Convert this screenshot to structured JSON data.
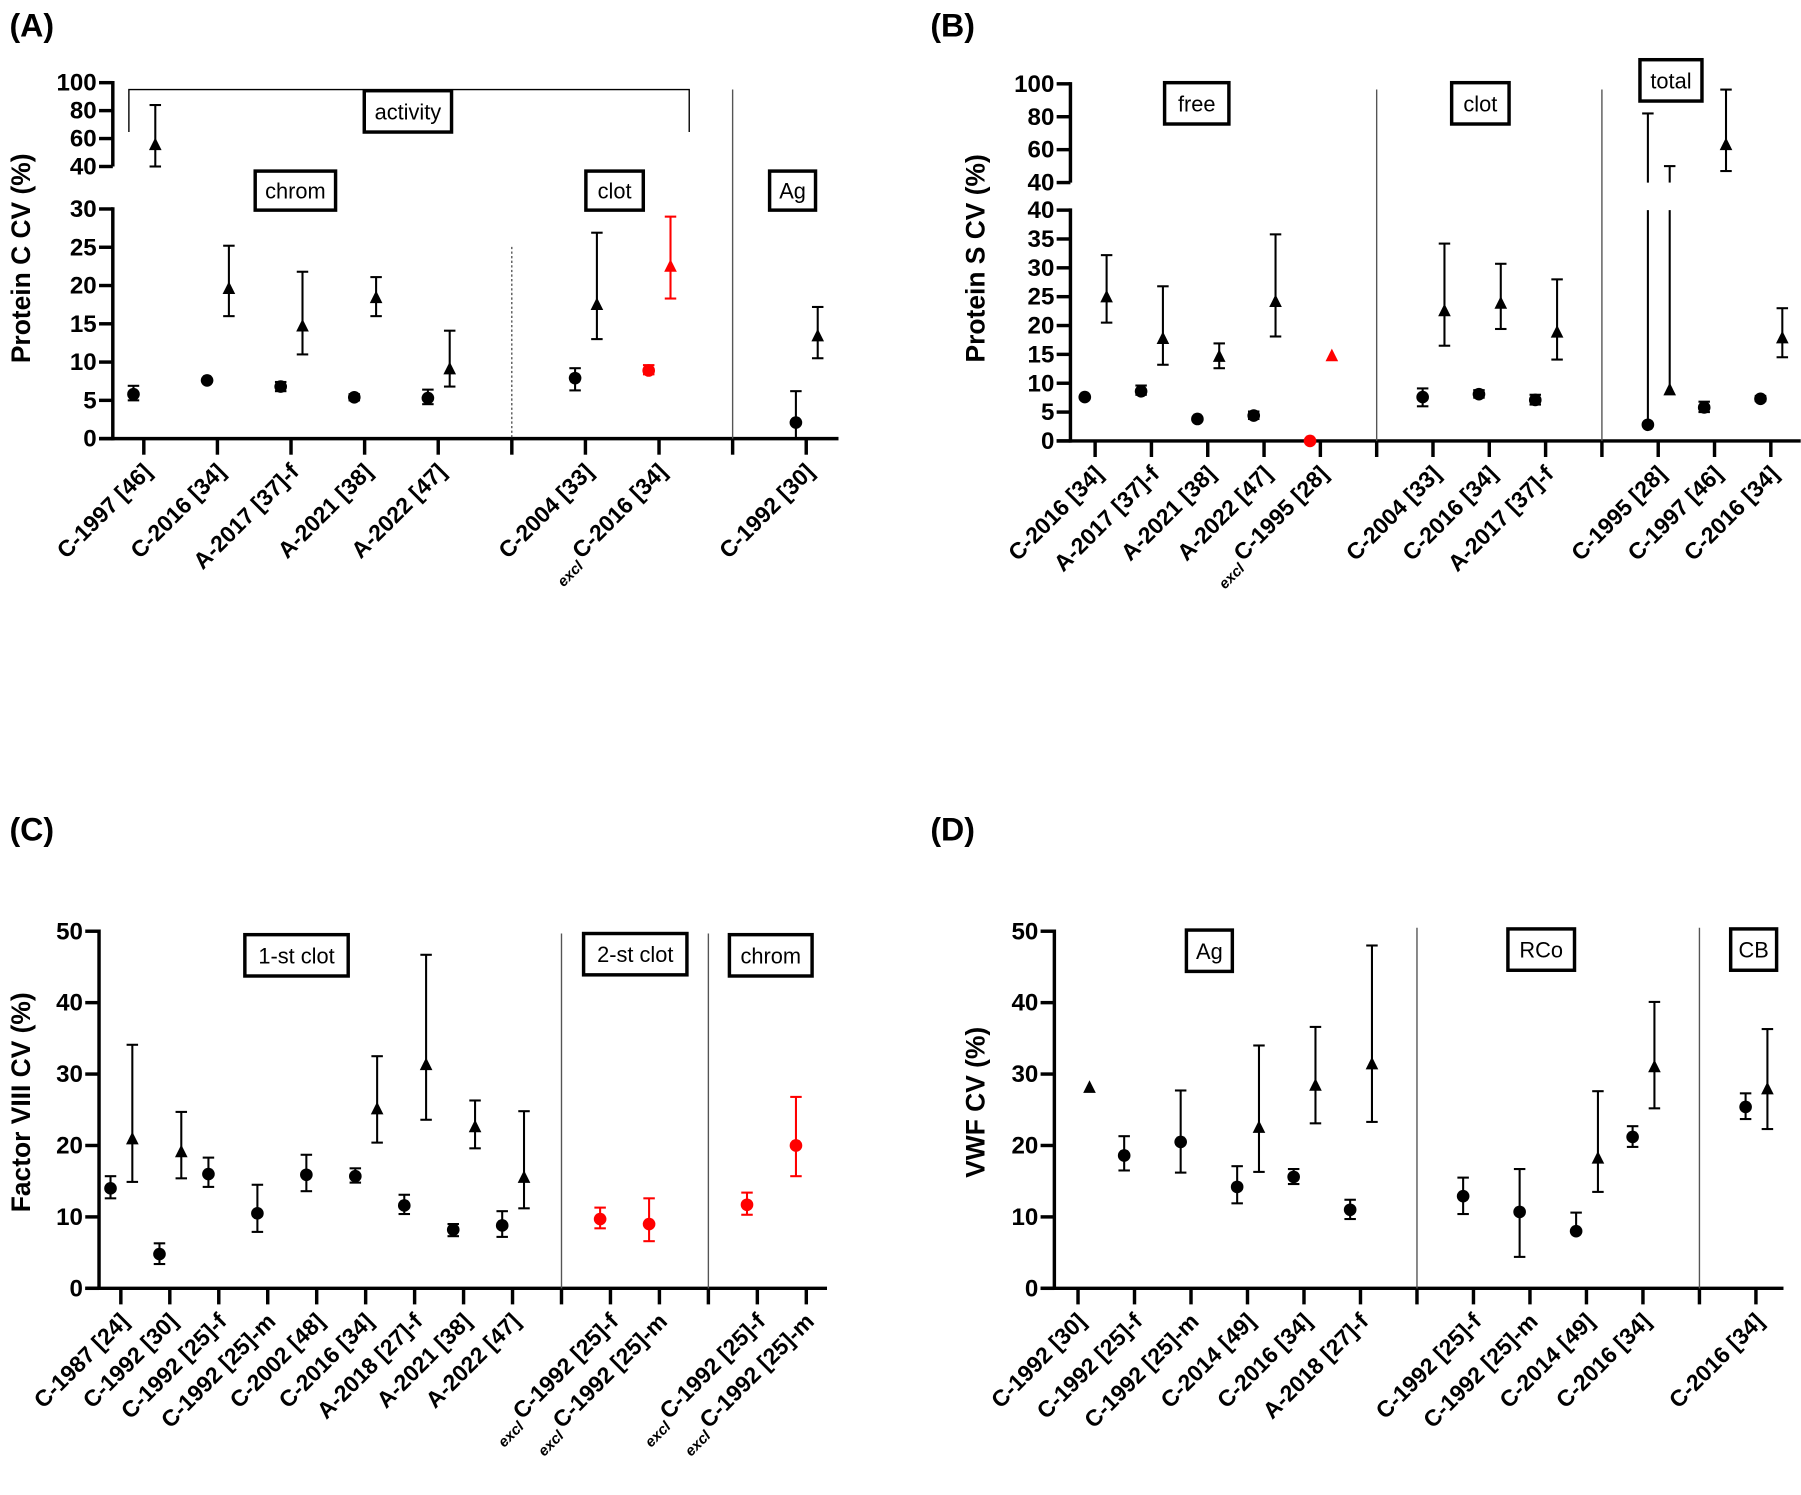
{
  "chart_data": [
    {
      "panel": "(A)",
      "type": "scatter",
      "ylabel": "Protein  C CV (%)",
      "y_ticks_lower": [
        0,
        5,
        10,
        15,
        20,
        25,
        30
      ],
      "y_ticks_upper": [
        40,
        60,
        80,
        100
      ],
      "y_axis_break": [
        30,
        40
      ],
      "ylim": [
        0,
        100
      ],
      "categories": [
        {
          "label": "C-1997 [46]"
        },
        {
          "label": "C-2016 [34]"
        },
        {
          "label": "A-2017 [37]-f"
        },
        {
          "label": "A-2021 [38]"
        },
        {
          "label": "A-2022 [47]"
        },
        {
          "label": ""
        },
        {
          "label": "C-2004 [33]"
        },
        {
          "label": "C-2016 [34]",
          "prefix": "excl"
        },
        {
          "label": ""
        },
        {
          "label": "C-1992 [30]"
        }
      ],
      "groups": [
        {
          "label": "activity",
          "style": "bracket"
        },
        {
          "label": "chrom"
        },
        {
          "label": "clot"
        },
        {
          "label": "Ag"
        }
      ],
      "dividers": [
        {
          "category": 5,
          "style": "dashed"
        },
        {
          "category": 8,
          "style": "solid"
        }
      ],
      "points": [
        {
          "cat": 0,
          "marker": "circle",
          "value": 5.8,
          "lo": 5.0,
          "hi": 6.9,
          "color": "#000000"
        },
        {
          "cat": 0,
          "marker": "triangle",
          "value": 55,
          "lo": 40,
          "hi": 84,
          "color": "#000000"
        },
        {
          "cat": 1,
          "marker": "circle",
          "value": 7.6,
          "color": "#000000"
        },
        {
          "cat": 1,
          "marker": "triangle",
          "value": 19.5,
          "lo": 16.0,
          "hi": 25.2,
          "color": "#000000"
        },
        {
          "cat": 2,
          "marker": "circle",
          "value": 6.8,
          "lo": 6.2,
          "hi": 7.4,
          "color": "#000000"
        },
        {
          "cat": 2,
          "marker": "triangle",
          "value": 14.6,
          "lo": 11.0,
          "hi": 21.8,
          "color": "#000000"
        },
        {
          "cat": 3,
          "marker": "circle",
          "value": 5.4,
          "lo": 5.0,
          "hi": 5.8,
          "color": "#000000"
        },
        {
          "cat": 3,
          "marker": "triangle",
          "value": 18.3,
          "lo": 16.0,
          "hi": 21.1,
          "color": "#000000"
        },
        {
          "cat": 4,
          "marker": "circle",
          "value": 5.3,
          "lo": 4.5,
          "hi": 6.4,
          "color": "#000000"
        },
        {
          "cat": 4,
          "marker": "triangle",
          "value": 9.0,
          "lo": 6.8,
          "hi": 14.1,
          "color": "#000000"
        },
        {
          "cat": 6,
          "marker": "circle",
          "value": 7.9,
          "lo": 6.3,
          "hi": 9.2,
          "color": "#000000"
        },
        {
          "cat": 6,
          "marker": "triangle",
          "value": 17.4,
          "lo": 13.0,
          "hi": 26.9,
          "color": "#000000"
        },
        {
          "cat": 7,
          "marker": "circle",
          "value": 8.9,
          "lo": 8.4,
          "hi": 9.6,
          "color": "#ff0000"
        },
        {
          "cat": 7,
          "marker": "triangle",
          "value": 22.4,
          "lo": 18.3,
          "hi": 29.0,
          "color": "#ff0000"
        },
        {
          "cat": 9,
          "marker": "circle",
          "value": 2.1,
          "lo": 0,
          "hi": 6.2,
          "color": "#000000"
        },
        {
          "cat": 9,
          "marker": "triangle",
          "value": 13.3,
          "lo": 10.5,
          "hi": 17.2,
          "color": "#000000"
        }
      ]
    },
    {
      "panel": "(B)",
      "type": "scatter",
      "ylabel": "Protein  S CV (%)",
      "y_ticks_lower": [
        0,
        5,
        10,
        15,
        20,
        25,
        30,
        35,
        40
      ],
      "y_ticks_upper": [
        40,
        60,
        80,
        100
      ],
      "y_axis_break": [
        40,
        40
      ],
      "ylim": [
        0,
        100
      ],
      "categories": [
        {
          "label": "C-2016 [34]"
        },
        {
          "label": "A-2017 [37]-f"
        },
        {
          "label": "A-2021 [38]"
        },
        {
          "label": "A-2022 [47]"
        },
        {
          "label": "C-1995 [28]",
          "prefix": "excl"
        },
        {
          "label": ""
        },
        {
          "label": "C-2004 [33]"
        },
        {
          "label": "C-2016 [34]"
        },
        {
          "label": "A-2017 [37]-f"
        },
        {
          "label": ""
        },
        {
          "label": "C-1995 [28]"
        },
        {
          "label": "C-1997 [46]"
        },
        {
          "label": "C-2016 [34]"
        }
      ],
      "groups": [
        {
          "label": "free"
        },
        {
          "label": "clot"
        },
        {
          "label": "total"
        }
      ],
      "dividers": [
        {
          "category": 5,
          "style": "solid"
        },
        {
          "category": 9,
          "style": "solid"
        }
      ],
      "points": [
        {
          "cat": 0,
          "marker": "circle",
          "value": 7.6,
          "color": "#000000"
        },
        {
          "cat": 0,
          "marker": "triangle",
          "value": 24.8,
          "lo": 20.5,
          "hi": 32.2,
          "color": "#000000"
        },
        {
          "cat": 1,
          "marker": "circle",
          "value": 8.6,
          "lo": 8.0,
          "hi": 9.6,
          "color": "#000000"
        },
        {
          "cat": 1,
          "marker": "triangle",
          "value": 17.6,
          "lo": 13.2,
          "hi": 26.8,
          "color": "#000000"
        },
        {
          "cat": 2,
          "marker": "circle",
          "value": 3.8,
          "color": "#000000"
        },
        {
          "cat": 2,
          "marker": "triangle",
          "value": 14.5,
          "lo": 12.6,
          "hi": 16.9,
          "color": "#000000"
        },
        {
          "cat": 3,
          "marker": "circle",
          "value": 4.4,
          "lo": 3.8,
          "hi": 5.1,
          "color": "#000000"
        },
        {
          "cat": 3,
          "marker": "triangle",
          "value": 24.0,
          "lo": 18.1,
          "hi": 35.8,
          "color": "#000000"
        },
        {
          "cat": 4,
          "marker": "circle",
          "value": 0,
          "color": "#ff0000"
        },
        {
          "cat": 4,
          "marker": "triangle",
          "value": 14.6,
          "color": "#ff0000"
        },
        {
          "cat": 6,
          "marker": "circle",
          "value": 7.6,
          "lo": 6.0,
          "hi": 9.1,
          "color": "#000000"
        },
        {
          "cat": 6,
          "marker": "triangle",
          "value": 22.4,
          "lo": 16.5,
          "hi": 34.2,
          "color": "#000000"
        },
        {
          "cat": 7,
          "marker": "circle",
          "value": 8.1,
          "lo": 7.5,
          "hi": 8.8,
          "color": "#000000"
        },
        {
          "cat": 7,
          "marker": "triangle",
          "value": 23.7,
          "lo": 19.4,
          "hi": 30.7,
          "color": "#000000"
        },
        {
          "cat": 8,
          "marker": "circle",
          "value": 7.1,
          "lo": 6.3,
          "hi": 8.0,
          "color": "#000000"
        },
        {
          "cat": 8,
          "marker": "triangle",
          "value": 18.7,
          "lo": 14.1,
          "hi": 28.0,
          "color": "#000000"
        },
        {
          "cat": 10,
          "marker": "circle",
          "value": 2.8,
          "lo": 2.8,
          "hi": 82,
          "color": "#000000"
        },
        {
          "cat": 10,
          "marker": "triangle",
          "value": 8.7,
          "lo": 8.7,
          "hi": 50,
          "color": "#000000"
        },
        {
          "cat": 11,
          "marker": "circle",
          "value": 5.8,
          "lo": 5.0,
          "hi": 6.8,
          "color": "#000000"
        },
        {
          "cat": 11,
          "marker": "triangle",
          "value": 62.5,
          "lo": 47,
          "hi": 96.5,
          "color": "#000000"
        },
        {
          "cat": 12,
          "marker": "circle",
          "value": 7.3,
          "lo": 6.9,
          "hi": 7.8,
          "color": "#000000"
        },
        {
          "cat": 12,
          "marker": "triangle",
          "value": 17.7,
          "lo": 14.5,
          "hi": 23.0,
          "color": "#000000"
        }
      ]
    },
    {
      "panel": "(C)",
      "type": "scatter",
      "ylabel": "Factor  VIII CV (%)",
      "y_ticks_lower": [
        0,
        10,
        20,
        30,
        40,
        50
      ],
      "ylim": [
        0,
        50
      ],
      "categories": [
        {
          "label": "C-1987 [24]"
        },
        {
          "label": "C-1992 [30]"
        },
        {
          "label": "C-1992 [25]-f"
        },
        {
          "label": "C-1992 [25]-m"
        },
        {
          "label": "C-2002 [48]"
        },
        {
          "label": "C-2016 [34]"
        },
        {
          "label": "A-2018 [27]-f"
        },
        {
          "label": "A-2021 [38]"
        },
        {
          "label": "A-2022 [47]"
        },
        {
          "label": ""
        },
        {
          "label": "C-1992 [25]-f",
          "prefix": "excl"
        },
        {
          "label": "C-1992 [25]-m",
          "prefix": "excl"
        },
        {
          "label": ""
        },
        {
          "label": "C-1992 [25]-f",
          "prefix": "excl"
        },
        {
          "label": "C-1992 [25]-m",
          "prefix": "excl"
        }
      ],
      "groups": [
        {
          "label": "1-st clot"
        },
        {
          "label": "2-st clot"
        },
        {
          "label": "chrom"
        }
      ],
      "dividers": [
        {
          "category": 9,
          "style": "solid"
        },
        {
          "category": 12,
          "style": "solid"
        }
      ],
      "points": [
        {
          "cat": 0,
          "marker": "circle",
          "value": 14.0,
          "lo": 12.6,
          "hi": 15.7,
          "color": "#000000"
        },
        {
          "cat": 0,
          "marker": "triangle",
          "value": 20.8,
          "lo": 14.9,
          "hi": 34.1,
          "color": "#000000"
        },
        {
          "cat": 1,
          "marker": "circle",
          "value": 4.8,
          "lo": 3.4,
          "hi": 6.3,
          "color": "#000000"
        },
        {
          "cat": 1,
          "marker": "triangle",
          "value": 19.0,
          "lo": 15.4,
          "hi": 24.7,
          "color": "#000000"
        },
        {
          "cat": 2,
          "marker": "circle",
          "value": 16.0,
          "lo": 14.2,
          "hi": 18.3,
          "color": "#000000"
        },
        {
          "cat": 3,
          "marker": "circle",
          "value": 10.5,
          "lo": 7.9,
          "hi": 14.5,
          "color": "#000000"
        },
        {
          "cat": 4,
          "marker": "circle",
          "value": 15.9,
          "lo": 13.6,
          "hi": 18.7,
          "color": "#000000"
        },
        {
          "cat": 5,
          "marker": "circle",
          "value": 15.7,
          "lo": 14.8,
          "hi": 16.8,
          "color": "#000000"
        },
        {
          "cat": 5,
          "marker": "triangle",
          "value": 25.0,
          "lo": 20.4,
          "hi": 32.5,
          "color": "#000000"
        },
        {
          "cat": 6,
          "marker": "circle",
          "value": 11.6,
          "lo": 10.4,
          "hi": 13.1,
          "color": "#000000"
        },
        {
          "cat": 6,
          "marker": "triangle",
          "value": 31.2,
          "lo": 23.6,
          "hi": 46.7,
          "color": "#000000"
        },
        {
          "cat": 7,
          "marker": "circle",
          "value": 8.2,
          "lo": 7.3,
          "hi": 9.0,
          "color": "#000000"
        },
        {
          "cat": 7,
          "marker": "triangle",
          "value": 22.5,
          "lo": 19.6,
          "hi": 26.3,
          "color": "#000000"
        },
        {
          "cat": 8,
          "marker": "circle",
          "value": 8.8,
          "lo": 7.2,
          "hi": 10.8,
          "color": "#000000"
        },
        {
          "cat": 8,
          "marker": "triangle",
          "value": 15.4,
          "lo": 11.2,
          "hi": 24.8,
          "color": "#000000"
        },
        {
          "cat": 10,
          "marker": "circle",
          "value": 9.7,
          "lo": 8.4,
          "hi": 11.3,
          "color": "#ff0000"
        },
        {
          "cat": 11,
          "marker": "circle",
          "value": 9.0,
          "lo": 6.6,
          "hi": 12.6,
          "color": "#ff0000"
        },
        {
          "cat": 13,
          "marker": "circle",
          "value": 11.7,
          "lo": 10.3,
          "hi": 13.4,
          "color": "#ff0000"
        },
        {
          "cat": 14,
          "marker": "circle",
          "value": 20.0,
          "lo": 15.7,
          "hi": 26.8,
          "color": "#ff0000"
        }
      ]
    },
    {
      "panel": "(D)",
      "type": "scatter",
      "ylabel": "VWF CV (%)",
      "y_ticks_lower": [
        0,
        10,
        20,
        30,
        40,
        50
      ],
      "ylim": [
        0,
        50
      ],
      "categories": [
        {
          "label": "C-1992 [30]"
        },
        {
          "label": "C-1992 [25]-f"
        },
        {
          "label": "C-1992 [25]-m"
        },
        {
          "label": "C-2014 [49]"
        },
        {
          "label": "C-2016 [34]"
        },
        {
          "label": "A-2018 [27]-f"
        },
        {
          "label": ""
        },
        {
          "label": "C-1992 [25]-f"
        },
        {
          "label": "C-1992 [25]-m"
        },
        {
          "label": "C-2014 [49]"
        },
        {
          "label": "C-2016 [34]"
        },
        {
          "label": ""
        },
        {
          "label": "C-2016 [34]"
        }
      ],
      "groups": [
        {
          "label": "Ag"
        },
        {
          "label": "RCo"
        },
        {
          "label": "CB"
        }
      ],
      "dividers": [
        {
          "category": 6,
          "style": "solid"
        },
        {
          "category": 11,
          "style": "solid"
        }
      ],
      "points": [
        {
          "cat": 0,
          "marker": "triangle",
          "value": 28.0,
          "color": "#000000"
        },
        {
          "cat": 1,
          "marker": "circle",
          "value": 18.6,
          "lo": 16.5,
          "hi": 21.3,
          "color": "#000000"
        },
        {
          "cat": 2,
          "marker": "circle",
          "value": 20.5,
          "lo": 16.2,
          "hi": 27.7,
          "color": "#000000"
        },
        {
          "cat": 3,
          "marker": "circle",
          "value": 14.2,
          "lo": 11.9,
          "hi": 17.1,
          "color": "#000000"
        },
        {
          "cat": 3,
          "marker": "triangle",
          "value": 22.4,
          "lo": 16.3,
          "hi": 34.0,
          "color": "#000000"
        },
        {
          "cat": 4,
          "marker": "circle",
          "value": 15.6,
          "lo": 14.6,
          "hi": 16.7,
          "color": "#000000"
        },
        {
          "cat": 4,
          "marker": "triangle",
          "value": 28.3,
          "lo": 23.1,
          "hi": 36.6,
          "color": "#000000"
        },
        {
          "cat": 5,
          "marker": "circle",
          "value": 11.0,
          "lo": 9.7,
          "hi": 12.4,
          "color": "#000000"
        },
        {
          "cat": 5,
          "marker": "triangle",
          "value": 31.3,
          "lo": 23.3,
          "hi": 48.0,
          "color": "#000000"
        },
        {
          "cat": 7,
          "marker": "circle",
          "value": 12.9,
          "lo": 10.4,
          "hi": 15.5,
          "color": "#000000"
        },
        {
          "cat": 8,
          "marker": "circle",
          "value": 10.7,
          "lo": 4.4,
          "hi": 16.7,
          "color": "#000000"
        },
        {
          "cat": 9,
          "marker": "circle",
          "value": 8.0,
          "lo": 8.0,
          "hi": 10.6,
          "color": "#000000"
        },
        {
          "cat": 9,
          "marker": "triangle",
          "value": 18.1,
          "lo": 13.5,
          "hi": 27.6,
          "color": "#000000"
        },
        {
          "cat": 10,
          "marker": "circle",
          "value": 21.2,
          "lo": 19.8,
          "hi": 22.7,
          "color": "#000000"
        },
        {
          "cat": 10,
          "marker": "triangle",
          "value": 30.9,
          "lo": 25.2,
          "hi": 40.1,
          "color": "#000000"
        },
        {
          "cat": 12,
          "marker": "circle",
          "value": 25.4,
          "lo": 23.7,
          "hi": 27.3,
          "color": "#000000"
        },
        {
          "cat": 12,
          "marker": "triangle",
          "value": 27.8,
          "lo": 22.3,
          "hi": 36.3,
          "color": "#000000"
        }
      ]
    }
  ]
}
